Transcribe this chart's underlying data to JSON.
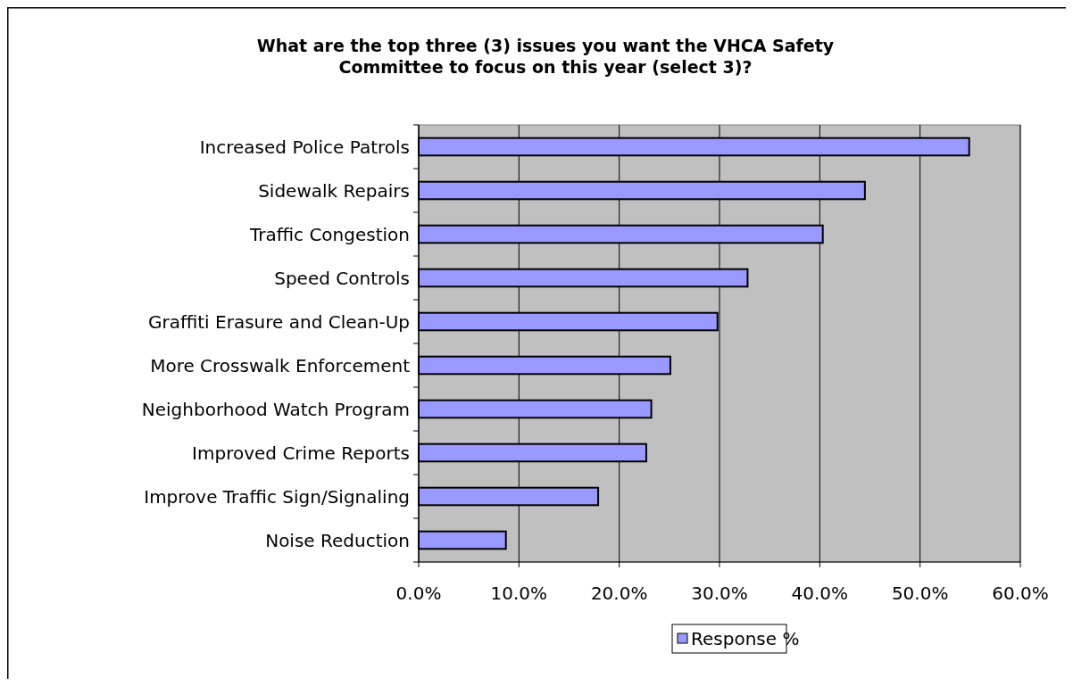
{
  "chart_data": {
    "type": "bar",
    "orientation": "horizontal",
    "title": "What are the top three (3) issues you want the VHCA Safety Committee to focus on this year (select 3)?",
    "categories": [
      "Increased Police Patrols",
      "Sidewalk Repairs",
      "Traffic Congestion",
      "Speed Controls",
      "Graffiti Erasure and Clean-Up",
      "More Crosswalk Enforcement",
      "Neighborhood Watch Program",
      "Improved Crime Reports",
      "Improve Traffic Sign/Signaling",
      "Noise Reduction"
    ],
    "series": [
      {
        "name": "Response %",
        "color": "#9999ff",
        "values": [
          54.9,
          44.5,
          40.3,
          32.8,
          29.8,
          25.1,
          23.2,
          22.7,
          17.9,
          8.7
        ]
      }
    ],
    "xlim": [
      0,
      60
    ],
    "xticks": [
      {
        "value": 0,
        "label": "0.0%"
      },
      {
        "value": 10,
        "label": "10.0%"
      },
      {
        "value": 20,
        "label": "20.0%"
      },
      {
        "value": 30,
        "label": "30.0%"
      },
      {
        "value": 40,
        "label": "40.0%"
      },
      {
        "value": 50,
        "label": "50.0%"
      },
      {
        "value": 60,
        "label": "60.0%"
      }
    ],
    "grid": "x",
    "legend": "bottom"
  }
}
